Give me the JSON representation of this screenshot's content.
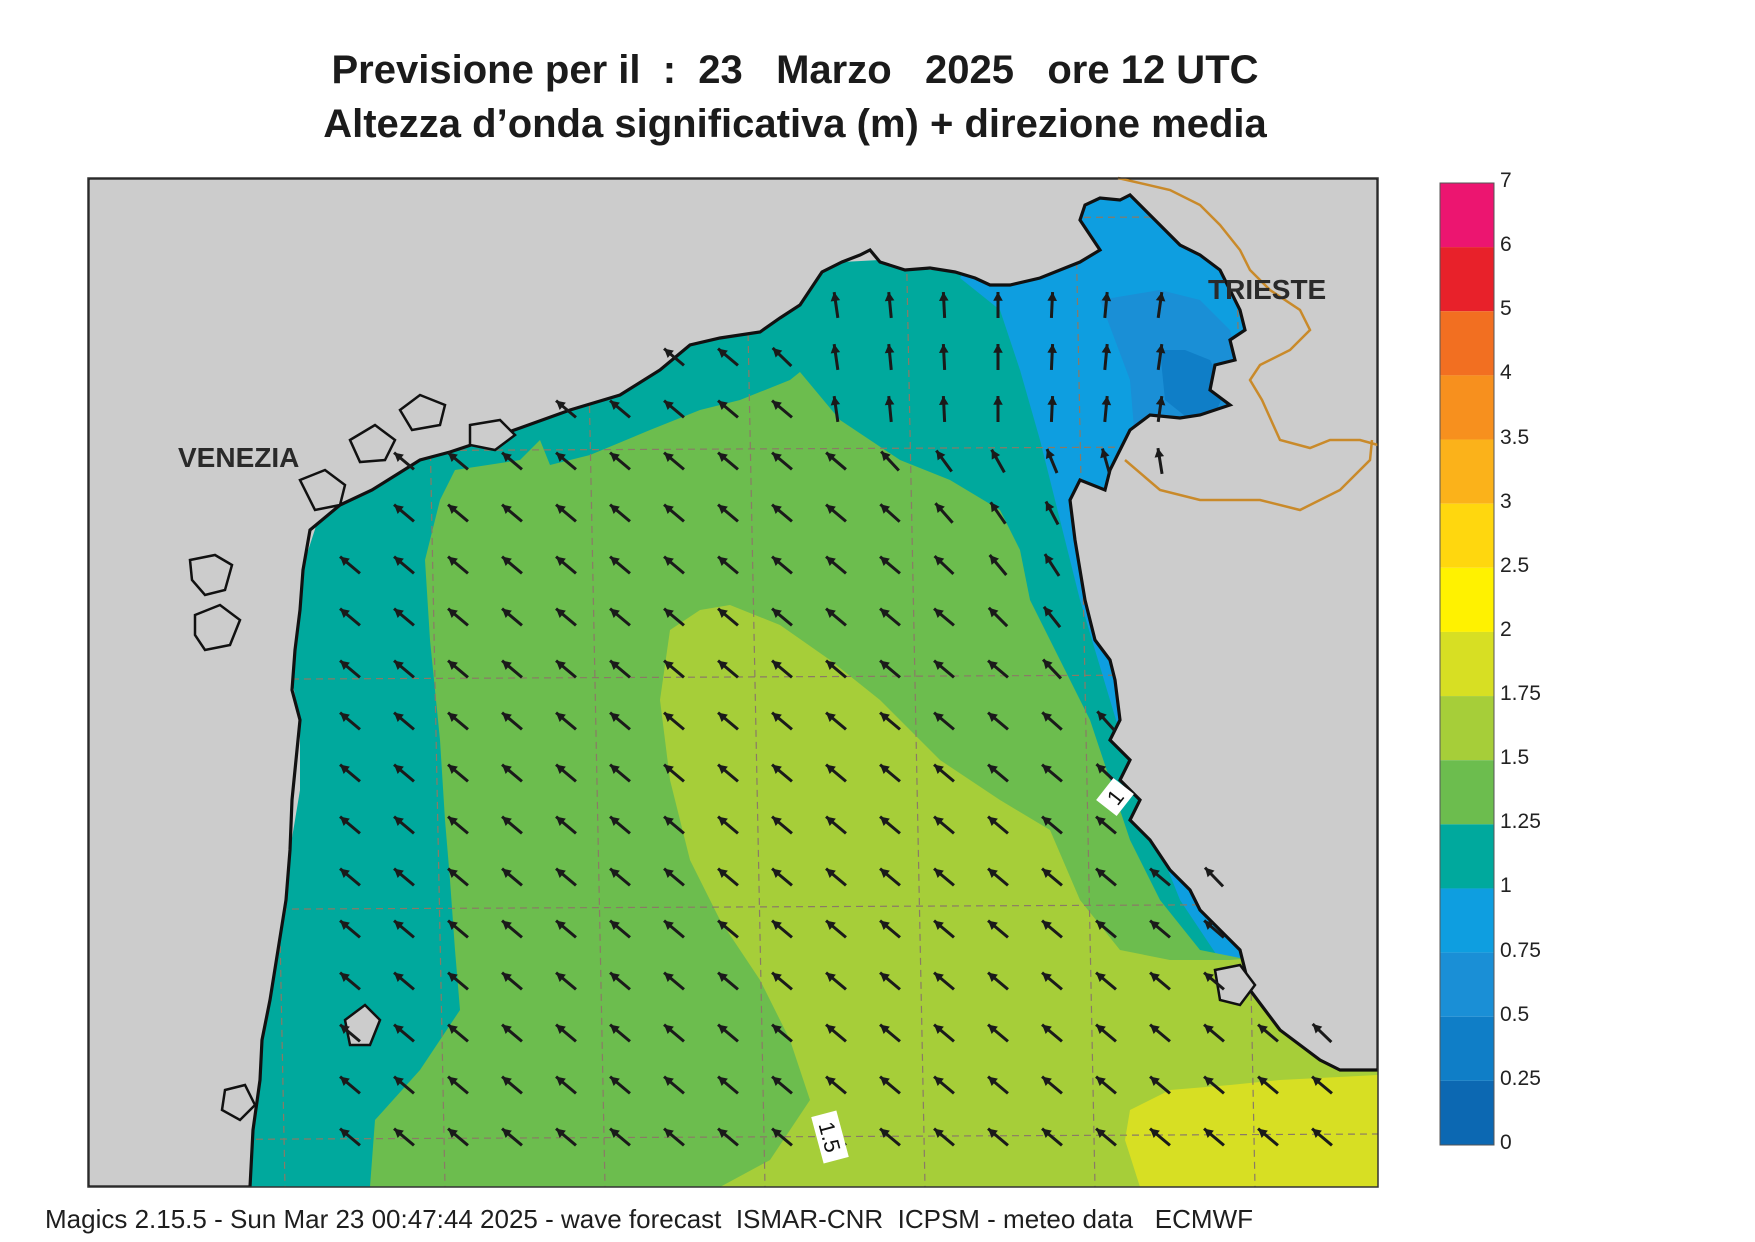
{
  "header": {
    "line1": "Previsione per il  :  23   Marzo   2025   ore 12 UTC",
    "line2": "Altezza d’onda significativa (m) + direzione media"
  },
  "map": {
    "cities": [
      {
        "name": "VENEZIA"
      },
      {
        "name": "TRIESTE"
      }
    ],
    "contour_labels": [
      "1",
      "1.5"
    ],
    "land_color": "#cccccc",
    "graticule": "dashed"
  },
  "legend": {
    "levels": [
      {
        "label": "7",
        "color": null
      },
      {
        "label": "6",
        "color": "#ec1570"
      },
      {
        "label": "5",
        "color": "#e8212a"
      },
      {
        "label": "4",
        "color": "#f26f21"
      },
      {
        "label": "3.5",
        "color": "#f7901e"
      },
      {
        "label": "3",
        "color": "#fbb21a"
      },
      {
        "label": "2.5",
        "color": "#ffd70e"
      },
      {
        "label": "2",
        "color": "#fff200"
      },
      {
        "label": "1.75",
        "color": "#d7df23"
      },
      {
        "label": "1.5",
        "color": "#a6ce39"
      },
      {
        "label": "1.25",
        "color": "#6cbd4e"
      },
      {
        "label": "1",
        "color": "#00a99d"
      },
      {
        "label": "0.75",
        "color": "#0e9ee0"
      },
      {
        "label": "0.5",
        "color": "#1a8fd6"
      },
      {
        "label": "0.25",
        "color": "#0f7ec7"
      },
      {
        "label": "0",
        "color": "#0c68b2"
      }
    ]
  },
  "footer": {
    "text": "Magics 2.15.5 - Sun Mar 23 00:47:44 2025 - wave forecast  ISMAR-CNR  ICPSM - meteo data   ECMWF"
  }
}
